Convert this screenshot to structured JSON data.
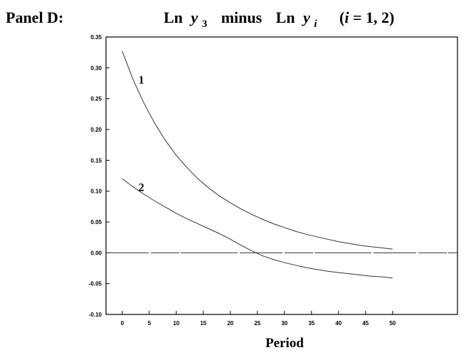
{
  "chart_data": {
    "type": "line",
    "panel_label": "Panel D:",
    "title": {
      "ln1": "Ln",
      "y1": "y",
      "sub1": "3",
      "minus": "minus",
      "ln2": "Ln",
      "y2": "y",
      "sub2": "i",
      "paren_open": "(",
      "i": "i",
      "range": " = 1, 2)"
    },
    "xlabel": "Period",
    "ylabel": "",
    "xlim": [
      -3,
      62
    ],
    "ylim": [
      -0.1,
      0.35
    ],
    "xticks": [
      0,
      5,
      10,
      15,
      20,
      25,
      30,
      35,
      40,
      45,
      50
    ],
    "xtick_labels": [
      "0",
      "5",
      "10",
      "15",
      "20",
      "25",
      "30",
      "35",
      "40",
      "45",
      "50"
    ],
    "yticks": [
      -0.1,
      -0.05,
      0.0,
      0.05,
      0.1,
      0.15,
      0.2,
      0.25,
      0.3,
      0.35
    ],
    "ytick_labels": [
      "-0.10",
      "-0.05",
      "0.00",
      "0.05",
      "0.10",
      "0.15",
      "0.20",
      "0.25",
      "0.30",
      "0.35"
    ],
    "grid": false,
    "reference_line_y": 0.0,
    "series": [
      {
        "name": "1",
        "x": [
          0,
          2,
          4,
          6,
          8,
          10,
          12,
          14,
          16,
          18,
          20,
          22,
          24,
          26,
          28,
          30,
          32,
          34,
          36,
          38,
          40,
          42,
          44,
          46,
          48,
          50
        ],
        "values": [
          0.327,
          0.281,
          0.243,
          0.21,
          0.182,
          0.158,
          0.138,
          0.12,
          0.105,
          0.092,
          0.081,
          0.071,
          0.062,
          0.054,
          0.047,
          0.041,
          0.035,
          0.03,
          0.026,
          0.022,
          0.018,
          0.015,
          0.012,
          0.01,
          0.008,
          0.006
        ],
        "label_at": [
          3,
          0.28
        ]
      },
      {
        "name": "2",
        "x": [
          0,
          2,
          4,
          6,
          8,
          10,
          12,
          14,
          16,
          18,
          20,
          22,
          24,
          26,
          28,
          30,
          32,
          34,
          36,
          38,
          40,
          42,
          44,
          46,
          48,
          50
        ],
        "values": [
          0.12,
          0.107,
          0.095,
          0.084,
          0.074,
          0.064,
          0.055,
          0.047,
          0.039,
          0.031,
          0.022,
          0.012,
          0.003,
          -0.005,
          -0.011,
          -0.016,
          -0.02,
          -0.024,
          -0.027,
          -0.03,
          -0.032,
          -0.034,
          -0.036,
          -0.038,
          -0.039,
          -0.041
        ],
        "label_at": [
          3,
          0.106
        ]
      }
    ]
  }
}
